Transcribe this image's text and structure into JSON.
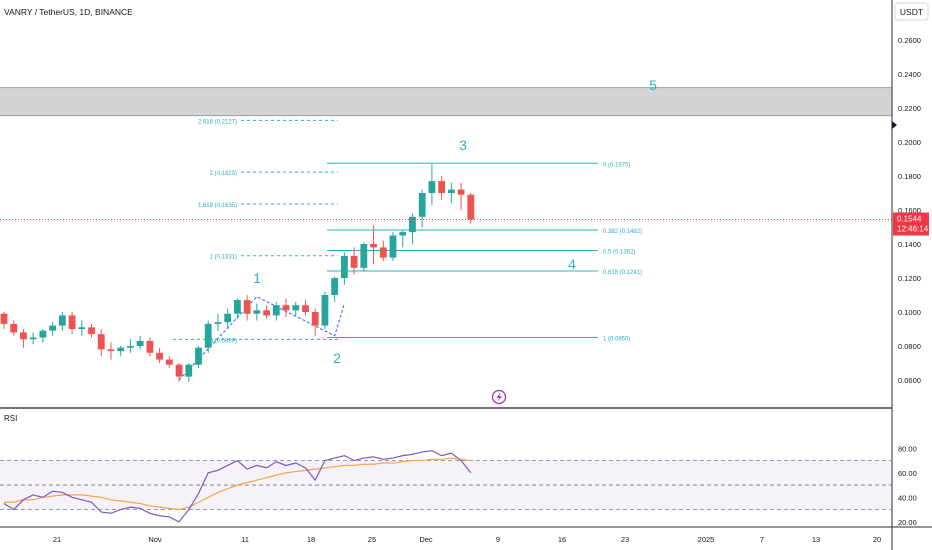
{
  "header": {
    "symbol_title": "VANRY / TetherUS, 1D, BINANCE",
    "currency_button": "USDT"
  },
  "price_axis": {
    "labels": [
      "0.2600",
      "0.2400",
      "0.2200",
      "0.2000",
      "0.1800",
      "0.1600",
      "0.1400",
      "0.1200",
      "0.1000",
      "0.0800",
      "0.0600"
    ],
    "current_price": "0.1544",
    "countdown": "12:46:14",
    "current_price_color": "#f23645"
  },
  "time_axis": {
    "labels": [
      "21",
      "Nov",
      "11",
      "18",
      "25",
      "Dec",
      "9",
      "16",
      "23",
      "2025",
      "7",
      "13",
      "20"
    ]
  },
  "rsi": {
    "title": "RSI",
    "axis_labels": [
      "80.00",
      "60.00",
      "40.00",
      "20.00"
    ],
    "upper_band": 70,
    "middle_band": 50,
    "lower_band": 30,
    "rsi_color": "#7e57c2",
    "ma_color": "#f7a541"
  },
  "wave_labels": [
    "1",
    "2",
    "3",
    "4",
    "5"
  ],
  "fib_extension_labels": [
    {
      "text": "2.618 (0.2127)",
      "price": 0.2127
    },
    {
      "text": "2 (0.1823)",
      "price": 0.1823
    },
    {
      "text": "1.618 (0.1635)",
      "price": 0.1635
    },
    {
      "text": "1 (0.1331)",
      "price": 0.1331
    },
    {
      "text": "0 (0.0839)",
      "price": 0.0839
    }
  ],
  "fib_retracement_labels": [
    {
      "text": "0 (0.1875)",
      "price": 0.1875
    },
    {
      "text": "0.382 (0.1482)",
      "price": 0.1482
    },
    {
      "text": "0.5 (0.1362)",
      "price": 0.1362
    },
    {
      "text": "0.618 (0.1241)",
      "price": 0.1241
    },
    {
      "text": "1 (0.0850)",
      "price": 0.085
    }
  ],
  "target_zone": {
    "top_price": 0.232,
    "bottom_price": 0.2155
  },
  "colors": {
    "up": "#26a69a",
    "down": "#ef5350",
    "fib": "#2ab0c5",
    "wave_label": "#2ab0c5",
    "zone_fill": "#d4d4d4"
  },
  "chart_data": {
    "type": "candlestick",
    "price_range": [
      0.048,
      0.272
    ],
    "candles": [
      [
        0.099,
        0.1,
        0.09,
        0.093
      ],
      [
        0.093,
        0.095,
        0.086,
        0.088
      ],
      [
        0.088,
        0.09,
        0.079,
        0.084
      ],
      [
        0.084,
        0.088,
        0.081,
        0.085
      ],
      [
        0.085,
        0.09,
        0.082,
        0.089
      ],
      [
        0.089,
        0.094,
        0.086,
        0.092
      ],
      [
        0.092,
        0.1,
        0.089,
        0.098
      ],
      [
        0.098,
        0.1,
        0.087,
        0.09
      ],
      [
        0.09,
        0.095,
        0.086,
        0.091
      ],
      [
        0.091,
        0.093,
        0.085,
        0.087
      ],
      [
        0.087,
        0.09,
        0.074,
        0.078
      ],
      [
        0.078,
        0.082,
        0.072,
        0.077
      ],
      [
        0.077,
        0.08,
        0.074,
        0.079
      ],
      [
        0.079,
        0.084,
        0.076,
        0.08
      ],
      [
        0.08,
        0.086,
        0.078,
        0.083
      ],
      [
        0.083,
        0.085,
        0.074,
        0.076
      ],
      [
        0.076,
        0.079,
        0.07,
        0.072
      ],
      [
        0.072,
        0.074,
        0.067,
        0.069
      ],
      [
        0.069,
        0.07,
        0.059,
        0.062
      ],
      [
        0.062,
        0.07,
        0.059,
        0.069
      ],
      [
        0.069,
        0.08,
        0.067,
        0.079
      ],
      [
        0.079,
        0.095,
        0.076,
        0.093
      ],
      [
        0.093,
        0.099,
        0.089,
        0.094
      ],
      [
        0.094,
        0.102,
        0.09,
        0.099
      ],
      [
        0.099,
        0.108,
        0.096,
        0.107
      ],
      [
        0.107,
        0.11,
        0.095,
        0.099
      ],
      [
        0.099,
        0.105,
        0.095,
        0.101
      ],
      [
        0.101,
        0.104,
        0.096,
        0.098
      ],
      [
        0.098,
        0.106,
        0.095,
        0.104
      ],
      [
        0.104,
        0.108,
        0.097,
        0.101
      ],
      [
        0.101,
        0.106,
        0.098,
        0.104
      ],
      [
        0.104,
        0.107,
        0.098,
        0.1
      ],
      [
        0.1,
        0.102,
        0.086,
        0.092
      ],
      [
        0.092,
        0.112,
        0.09,
        0.11
      ],
      [
        0.11,
        0.121,
        0.106,
        0.12
      ],
      [
        0.12,
        0.135,
        0.116,
        0.133
      ],
      [
        0.133,
        0.138,
        0.122,
        0.126
      ],
      [
        0.126,
        0.141,
        0.124,
        0.14
      ],
      [
        0.14,
        0.151,
        0.128,
        0.138
      ],
      [
        0.138,
        0.142,
        0.13,
        0.132
      ],
      [
        0.132,
        0.147,
        0.13,
        0.145
      ],
      [
        0.145,
        0.148,
        0.138,
        0.147
      ],
      [
        0.147,
        0.158,
        0.14,
        0.156
      ],
      [
        0.156,
        0.172,
        0.15,
        0.17
      ],
      [
        0.17,
        0.187,
        0.163,
        0.177
      ],
      [
        0.177,
        0.18,
        0.166,
        0.17
      ],
      [
        0.17,
        0.176,
        0.164,
        0.172
      ],
      [
        0.172,
        0.176,
        0.16,
        0.169
      ],
      [
        0.169,
        0.17,
        0.152,
        0.1544
      ]
    ],
    "rsi_values": [
      35,
      30,
      38,
      42,
      40,
      45,
      44,
      40,
      38,
      36,
      28,
      27,
      30,
      32,
      31,
      27,
      25,
      24,
      20,
      30,
      43,
      60,
      62,
      66,
      70,
      63,
      66,
      64,
      69,
      66,
      68,
      64,
      54,
      70,
      72,
      74,
      70,
      72,
      73,
      71,
      72,
      74,
      75,
      77,
      78,
      74,
      76,
      70,
      60
    ],
    "rsi_ma_values": [
      36,
      36,
      38,
      38,
      40,
      41,
      42,
      42,
      42,
      41,
      40,
      38,
      37,
      36,
      35,
      33,
      32,
      31,
      30,
      32,
      36,
      40,
      44,
      47,
      50,
      52,
      54,
      56,
      58,
      60,
      61,
      62,
      63,
      64,
      65,
      66,
      66,
      67,
      67,
      68,
      68,
      69,
      70,
      70,
      71,
      71,
      72,
      71,
      70
    ],
    "rsi_range": [
      20,
      90
    ]
  }
}
